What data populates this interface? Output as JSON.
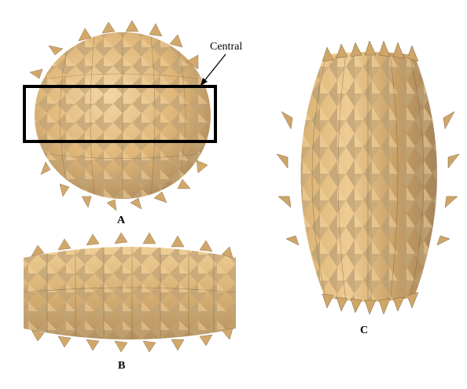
{
  "labels": {
    "a": "A",
    "b": "B",
    "c": "C"
  },
  "annotation": {
    "central": "Central"
  },
  "colors": {
    "paper_light": "#ecc88e",
    "paper_mid": "#d9ae6e",
    "paper_dark": "#8c7450",
    "paper_shadow": "#6f5a3c",
    "box_outline": "#000000"
  }
}
